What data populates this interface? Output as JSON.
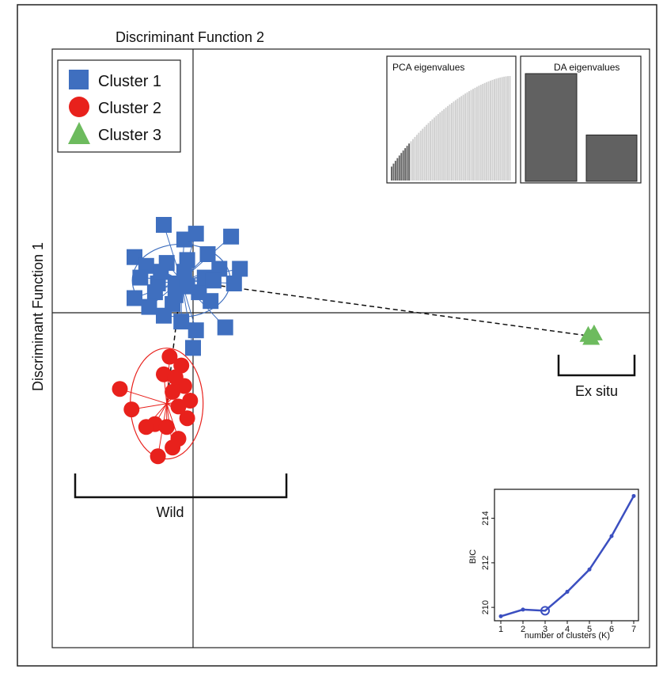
{
  "chart_data": {
    "type": "scatter",
    "xlabel": "Discriminant Function 2",
    "ylabel": "Discriminant Function 1",
    "legend": {
      "placement": "top-left",
      "entries": [
        {
          "name": "Cluster 1",
          "shape": "square",
          "color": "#3f6fbf"
        },
        {
          "name": "Cluster 2",
          "shape": "circle",
          "color": "#e8211c"
        },
        {
          "name": "Cluster 3",
          "shape": "triangle",
          "color": "#6dbb5e"
        }
      ]
    },
    "grid": false,
    "annotations": {
      "wild": "Wild",
      "ex_situ": "Ex situ"
    },
    "clusters": [
      {
        "name": "Cluster 1",
        "centroid": [
          -0.4,
          1.1
        ],
        "points": [
          [
            -1.0,
            3.0
          ],
          [
            -0.3,
            2.5
          ],
          [
            0.1,
            2.7
          ],
          [
            1.3,
            2.6
          ],
          [
            -0.2,
            1.8
          ],
          [
            0.5,
            2.0
          ],
          [
            0.9,
            1.5
          ],
          [
            1.4,
            1.0
          ],
          [
            1.6,
            1.5
          ],
          [
            -2.0,
            1.9
          ],
          [
            -1.6,
            1.6
          ],
          [
            -0.9,
            1.7
          ],
          [
            -1.8,
            1.2
          ],
          [
            -1.3,
            0.7
          ],
          [
            -0.6,
            1.0
          ],
          [
            -0.7,
            0.3
          ],
          [
            0.2,
            0.7
          ],
          [
            0.6,
            0.4
          ],
          [
            -1.0,
            -0.1
          ],
          [
            -2.0,
            0.5
          ],
          [
            -0.4,
            -0.3
          ],
          [
            1.1,
            -0.5
          ],
          [
            0.1,
            -0.6
          ],
          [
            0.0,
            -1.2
          ],
          [
            -1.2,
            1.0
          ],
          [
            -0.3,
            1.4
          ],
          [
            0.4,
            1.2
          ],
          [
            -1.5,
            0.2
          ],
          [
            -0.2,
            0.9
          ],
          [
            0.7,
            1.1
          ],
          [
            -1.1,
            1.4
          ],
          [
            -0.6,
            0.6
          ]
        ]
      },
      {
        "name": "Cluster 2",
        "centroid": [
          -0.9,
          -3.1
        ],
        "points": [
          [
            -0.8,
            -1.5
          ],
          [
            -0.4,
            -1.8
          ],
          [
            -1.0,
            -2.1
          ],
          [
            -0.3,
            -2.5
          ],
          [
            -0.7,
            -2.7
          ],
          [
            -2.5,
            -2.6
          ],
          [
            -0.1,
            -3.0
          ],
          [
            -0.5,
            -3.2
          ],
          [
            -2.1,
            -3.3
          ],
          [
            -0.2,
            -3.6
          ],
          [
            -1.3,
            -3.8
          ],
          [
            -1.6,
            -3.9
          ],
          [
            -0.9,
            -3.9
          ],
          [
            -0.5,
            -4.3
          ],
          [
            -0.7,
            -4.6
          ],
          [
            -1.2,
            -4.9
          ],
          [
            -0.6,
            -2.2
          ]
        ]
      },
      {
        "name": "Cluster 3",
        "centroid": [
          13.6,
          -0.8
        ],
        "points": [
          [
            13.5,
            -0.75
          ],
          [
            13.7,
            -0.7
          ],
          [
            13.6,
            -0.85
          ]
        ]
      }
    ],
    "inset_pca": {
      "title": "PCA eigenvalues",
      "n_bars": 62,
      "retained": 10
    },
    "inset_da": {
      "title": "DA eigenvalues",
      "values": [
        1.0,
        0.43
      ]
    },
    "inset_bic": {
      "type": "line",
      "xlabel": "number of clusters (K)",
      "ylabel": "BIC",
      "x": [
        1,
        2,
        3,
        4,
        5,
        6,
        7
      ],
      "values": [
        209.6,
        209.9,
        209.85,
        210.7,
        211.7,
        213.2,
        215.0
      ],
      "selected": 3,
      "xticks": [
        "1",
        "2",
        "3",
        "4",
        "5",
        "6",
        "7"
      ],
      "yticks": [
        "210",
        "212",
        "214"
      ],
      "ylim": [
        209.4,
        215.3
      ],
      "color": "#3b4fc0"
    }
  }
}
